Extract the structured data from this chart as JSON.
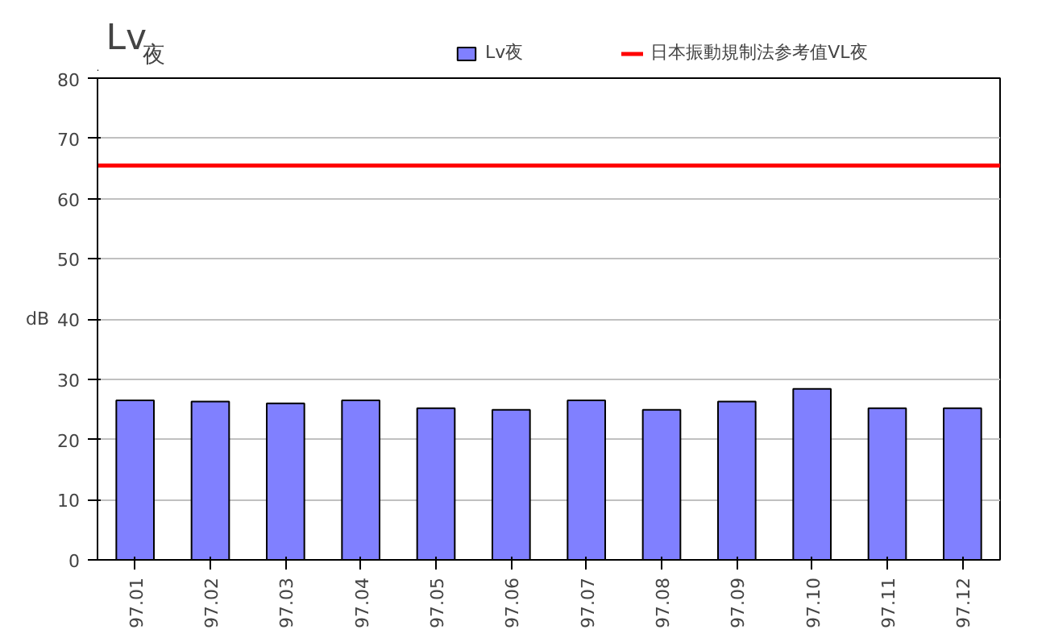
{
  "chart_data": {
    "type": "bar",
    "title": "Lv$_{夜}$",
    "ylabel": "dB",
    "categories": [
      "97.01",
      "97.02",
      "97.03",
      "97.04",
      "97.05",
      "97.06",
      "97.07",
      "97.08",
      "97.09",
      "97.10",
      "97.11",
      "97.12"
    ],
    "series": [
      {
        "name": "Lv夜",
        "color": "#8080ff",
        "values": [
          26.5,
          26.3,
          26.0,
          26.5,
          25.2,
          24.9,
          26.5,
          24.9,
          26.3,
          28.4,
          25.2,
          25.2
        ]
      }
    ],
    "ref_lines": [
      {
        "axis": "y",
        "value": 65.5,
        "label": "日本振動規制法参考值VL夜",
        "color": "#ff0000",
        "line_style": "solid"
      }
    ],
    "ylim": [
      0,
      80
    ],
    "yticks": [
      0,
      10,
      20,
      30,
      40,
      50,
      60,
      70,
      80
    ],
    "grid": "y",
    "legend": "top"
  }
}
